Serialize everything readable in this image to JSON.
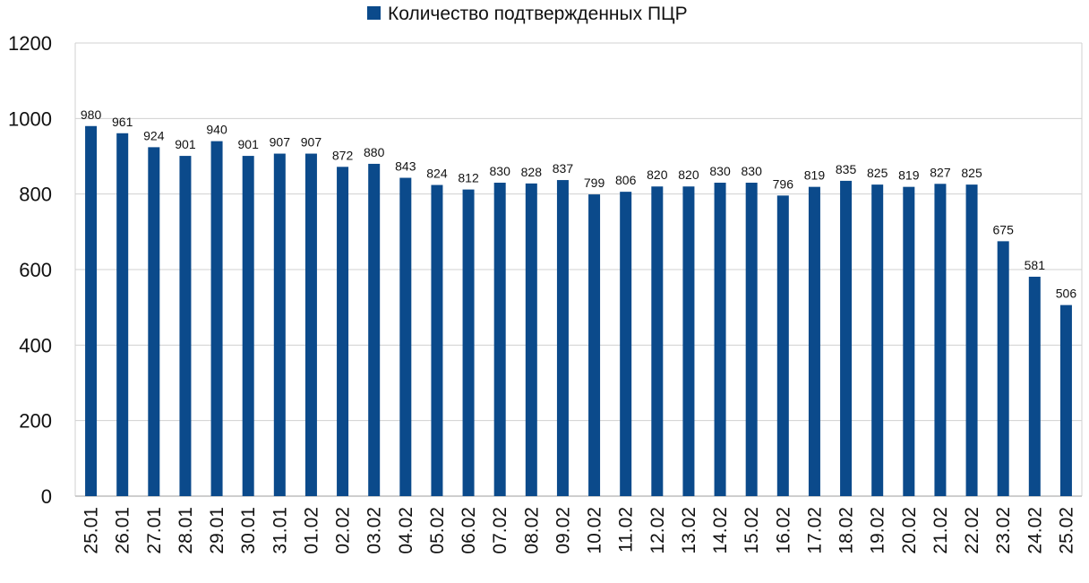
{
  "chart_data": {
    "type": "bar",
    "title": "",
    "xlabel": "",
    "ylabel": "",
    "ylim": [
      0,
      1200
    ],
    "yticks": [
      0,
      200,
      400,
      600,
      800,
      1000,
      1200
    ],
    "grid": true,
    "legend_position": "top-center",
    "categories": [
      "25.01",
      "26.01",
      "27.01",
      "28.01",
      "29.01",
      "30.01",
      "31.01",
      "01.02",
      "02.02",
      "03.02",
      "04.02",
      "05.02",
      "06.02",
      "07.02",
      "08.02",
      "09.02",
      "10.02",
      "11.02",
      "12.02",
      "13.02",
      "14.02",
      "15.02",
      "16.02",
      "17.02",
      "18.02",
      "19.02",
      "20.02",
      "21.02",
      "22.02",
      "23.02",
      "24.02",
      "25.02"
    ],
    "series": [
      {
        "name": "Количество подтвержденных ПЦР",
        "color": "#0b4a8b",
        "values": [
          980,
          961,
          924,
          901,
          940,
          901,
          907,
          907,
          872,
          880,
          843,
          824,
          812,
          830,
          828,
          837,
          799,
          806,
          820,
          820,
          830,
          830,
          796,
          819,
          835,
          825,
          819,
          827,
          825,
          675,
          581,
          506
        ]
      }
    ]
  }
}
